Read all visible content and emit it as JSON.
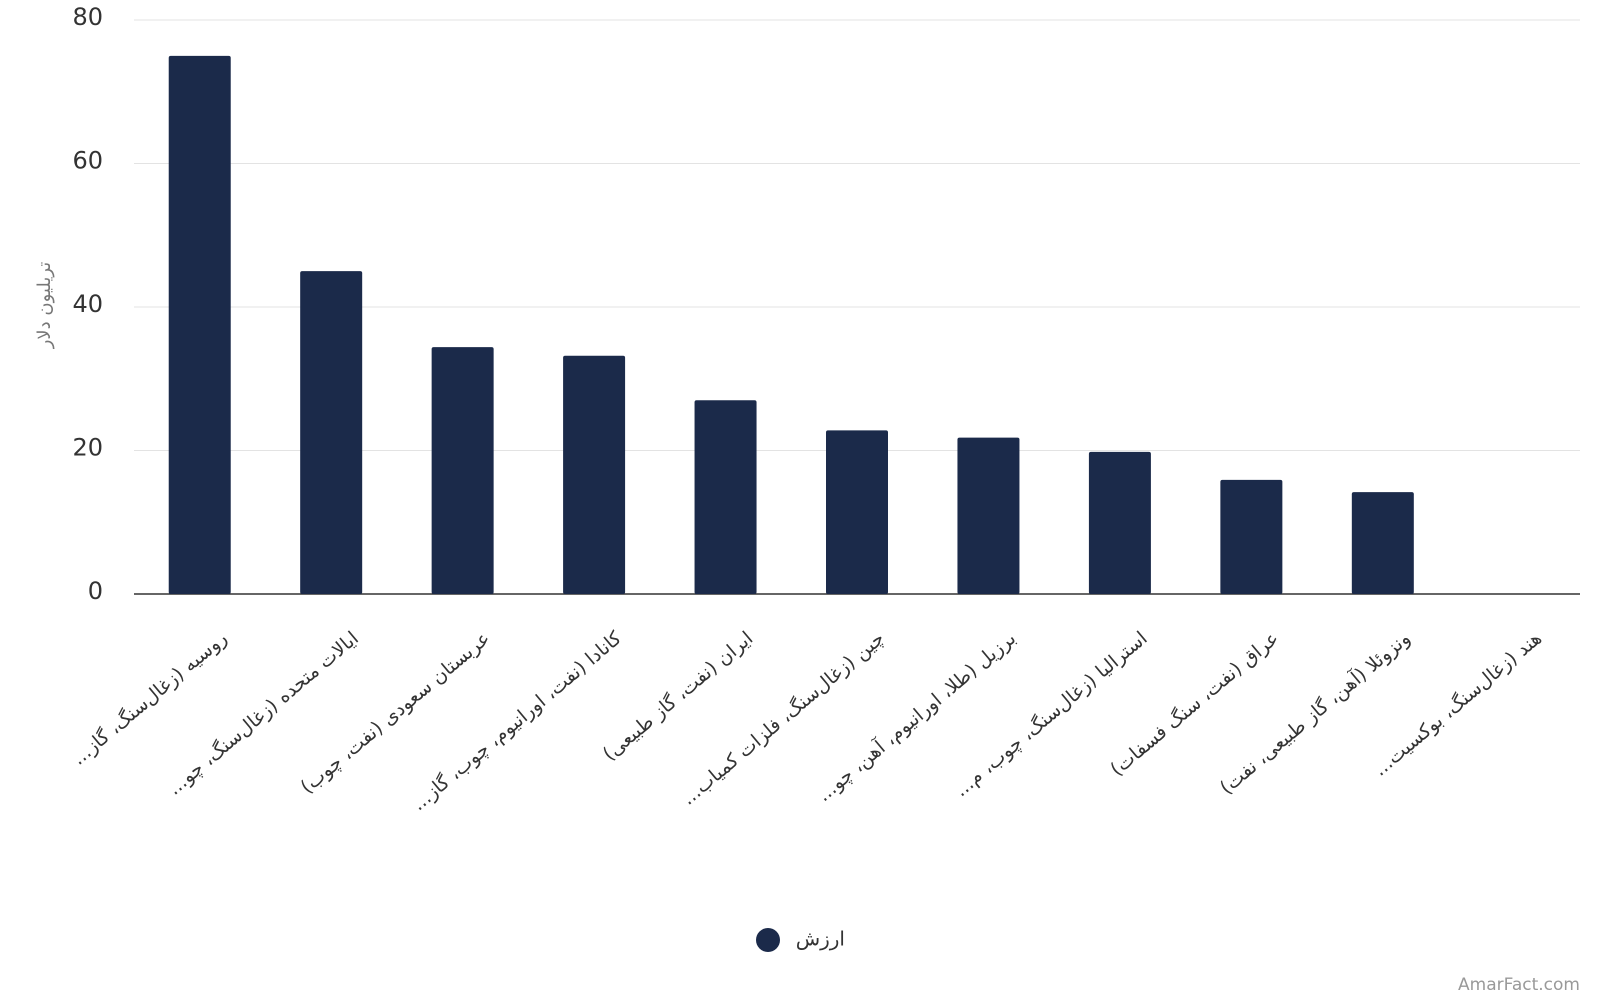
{
  "chart_data": {
    "type": "bar",
    "y_label": "تریلیون دلار",
    "categories": [
      "روسیه (زغال‌سنگ، گاز...",
      "ایالات متحده (زغال‌سنگ، چو...",
      "عربستان سعودی (نفت، چوب)",
      "کانادا (نفت، اورانیوم، چوب، گاز...",
      "ایران (نفت، گاز طبیعی)",
      "چین (زغال‌سنگ، فلزات کمیاب...",
      "برزیل (طلا، اورانیوم، آهن، چو...",
      "استرالیا (زغال‌سنگ، چوب، م...",
      "عراق (نفت، سنگ فسفات)",
      "ونزوئلا (آهن، گاز طبیعی، نفت)",
      "هند (زغال‌سنگ، بوکسیت..."
    ],
    "series": [
      {
        "name": "ارزش",
        "color": "#1b2a4a",
        "values": [
          75,
          45,
          34.4,
          33.2,
          27,
          22.8,
          21.8,
          19.8,
          15.9,
          14.2,
          null
        ]
      }
    ],
    "ylim": [
      0,
      80
    ],
    "yticks": [
      0,
      20,
      40,
      60,
      80
    ],
    "grid": true,
    "watermark": "AmarFact.com"
  }
}
